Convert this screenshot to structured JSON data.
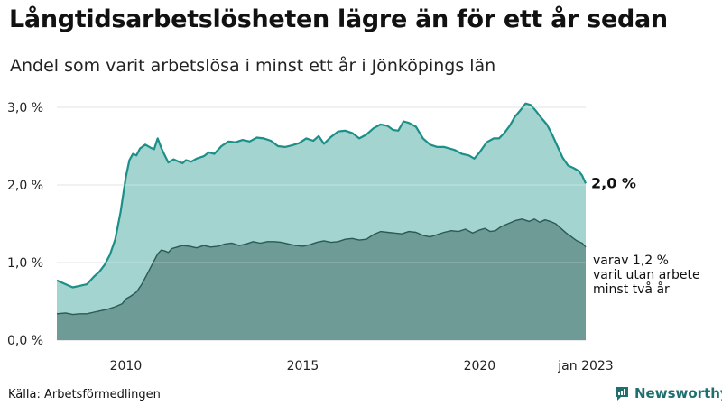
{
  "chart_data": {
    "type": "area",
    "title": "Långtidsarbetslösheten lägre än för ett år sedan",
    "subtitle": "Andel som varit arbetslösa i minst ett år i Jönköpings län",
    "y_ticks": [
      "0,0 %",
      "1,0 %",
      "2,0 %",
      "3,0 %"
    ],
    "ylim": [
      0,
      3.0
    ],
    "x_ticks": [
      {
        "t": 2010,
        "label": "2010"
      },
      {
        "t": 2015,
        "label": "2015"
      },
      {
        "t": 2020,
        "label": "2020"
      },
      {
        "t": 2023.0,
        "label": "jan 2023"
      }
    ],
    "xlim": [
      2008.05,
      2023.0
    ],
    "grid": true,
    "end_label": "2,0 %",
    "secondary_label_lines": [
      "varav 1,2 %",
      "varit utan arbete",
      "minst två år"
    ],
    "colors": {
      "fill1": "#a3d4cf",
      "line1": "#1b8f88",
      "fill2": "#6e9b95",
      "line2": "#2a5a55"
    },
    "series": [
      {
        "x": [
          2008.05,
          2008.3,
          2008.5,
          2008.7,
          2008.9,
          2009.1,
          2009.25,
          2009.4,
          2009.55,
          2009.7,
          2009.85,
          2010.0,
          2010.1,
          2010.2,
          2010.3,
          2010.4,
          2010.55,
          2010.7,
          2010.8,
          2010.9,
          2011.0,
          2011.1,
          2011.2,
          2011.35,
          2011.5,
          2011.6,
          2011.7,
          2011.85,
          2012.0,
          2012.2,
          2012.35,
          2012.5,
          2012.7,
          2012.9,
          2013.1,
          2013.3,
          2013.5,
          2013.7,
          2013.9,
          2014.1,
          2014.3,
          2014.5,
          2014.7,
          2014.9,
          2015.1,
          2015.3,
          2015.45,
          2015.6,
          2015.8,
          2016.0,
          2016.2,
          2016.4,
          2016.6,
          2016.8,
          2017.0,
          2017.2,
          2017.4,
          2017.55,
          2017.7,
          2017.85,
          2018.0,
          2018.2,
          2018.4,
          2018.6,
          2018.8,
          2019.0,
          2019.15,
          2019.3,
          2019.5,
          2019.7,
          2019.85,
          2020.0,
          2020.2,
          2020.4,
          2020.55,
          2020.7,
          2020.85,
          2021.0,
          2021.15,
          2021.3,
          2021.45,
          2021.6,
          2021.75,
          2021.9,
          2022.05,
          2022.2,
          2022.35,
          2022.5,
          2022.65,
          2022.8,
          2022.9,
          2023.0
        ],
        "y": [
          0.77,
          0.72,
          0.68,
          0.7,
          0.72,
          0.82,
          0.88,
          0.97,
          1.1,
          1.3,
          1.65,
          2.1,
          2.32,
          2.4,
          2.38,
          2.47,
          2.52,
          2.48,
          2.46,
          2.6,
          2.48,
          2.38,
          2.29,
          2.33,
          2.3,
          2.28,
          2.32,
          2.3,
          2.34,
          2.37,
          2.42,
          2.4,
          2.5,
          2.56,
          2.55,
          2.58,
          2.56,
          2.61,
          2.6,
          2.57,
          2.5,
          2.49,
          2.51,
          2.54,
          2.6,
          2.57,
          2.63,
          2.53,
          2.62,
          2.69,
          2.7,
          2.67,
          2.6,
          2.65,
          2.73,
          2.78,
          2.76,
          2.71,
          2.7,
          2.82,
          2.8,
          2.75,
          2.6,
          2.52,
          2.49,
          2.49,
          2.47,
          2.45,
          2.4,
          2.38,
          2.34,
          2.42,
          2.55,
          2.6,
          2.6,
          2.67,
          2.76,
          2.88,
          2.96,
          3.05,
          3.03,
          2.95,
          2.86,
          2.78,
          2.65,
          2.5,
          2.35,
          2.25,
          2.22,
          2.18,
          2.12,
          2.02
        ]
      },
      {
        "x": [
          2008.05,
          2008.3,
          2008.5,
          2008.7,
          2008.9,
          2009.1,
          2009.3,
          2009.5,
          2009.7,
          2009.9,
          2010.0,
          2010.15,
          2010.3,
          2010.45,
          2010.6,
          2010.75,
          2010.9,
          2011.0,
          2011.1,
          2011.2,
          2011.3,
          2011.45,
          2011.6,
          2011.8,
          2012.0,
          2012.2,
          2012.4,
          2012.6,
          2012.8,
          2013.0,
          2013.2,
          2013.4,
          2013.6,
          2013.8,
          2014.0,
          2014.2,
          2014.4,
          2014.6,
          2014.8,
          2015.0,
          2015.2,
          2015.4,
          2015.6,
          2015.8,
          2016.0,
          2016.2,
          2016.4,
          2016.6,
          2016.8,
          2017.0,
          2017.2,
          2017.4,
          2017.6,
          2017.8,
          2018.0,
          2018.2,
          2018.4,
          2018.6,
          2018.8,
          2019.0,
          2019.2,
          2019.4,
          2019.6,
          2019.8,
          2020.0,
          2020.15,
          2020.3,
          2020.45,
          2020.6,
          2020.8,
          2021.0,
          2021.2,
          2021.4,
          2021.55,
          2021.7,
          2021.85,
          2022.0,
          2022.15,
          2022.3,
          2022.45,
          2022.6,
          2022.75,
          2022.9,
          2023.0
        ],
        "y": [
          0.34,
          0.35,
          0.33,
          0.34,
          0.34,
          0.36,
          0.38,
          0.4,
          0.43,
          0.47,
          0.53,
          0.57,
          0.62,
          0.72,
          0.85,
          0.98,
          1.11,
          1.16,
          1.15,
          1.13,
          1.18,
          1.2,
          1.22,
          1.21,
          1.19,
          1.22,
          1.2,
          1.21,
          1.24,
          1.25,
          1.22,
          1.24,
          1.27,
          1.25,
          1.27,
          1.27,
          1.26,
          1.24,
          1.22,
          1.21,
          1.23,
          1.26,
          1.28,
          1.26,
          1.27,
          1.3,
          1.31,
          1.29,
          1.3,
          1.36,
          1.4,
          1.39,
          1.38,
          1.37,
          1.4,
          1.39,
          1.35,
          1.33,
          1.36,
          1.39,
          1.41,
          1.4,
          1.43,
          1.38,
          1.42,
          1.44,
          1.4,
          1.41,
          1.46,
          1.5,
          1.54,
          1.56,
          1.53,
          1.56,
          1.52,
          1.55,
          1.53,
          1.5,
          1.44,
          1.38,
          1.33,
          1.28,
          1.25,
          1.2
        ]
      }
    ]
  },
  "footer": {
    "source": "Källa: Arbetsförmedlingen",
    "brand": "Newsworthy"
  }
}
